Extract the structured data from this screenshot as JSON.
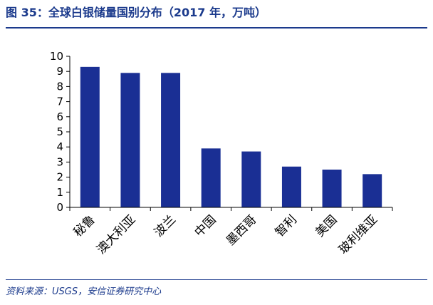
{
  "header": {
    "title": "图 35：全球白银储量国别分布（2017 年，万吨）"
  },
  "footer": {
    "source": "资料来源：USGS，安信证券研究中心"
  },
  "colors": {
    "bar": "#1a2f94",
    "title": "#1b3a8c",
    "axis": "#000000"
  },
  "chart_data": {
    "type": "bar",
    "title": "图 35：全球白银储量国别分布（2017 年，万吨）",
    "xlabel": "",
    "ylabel": "",
    "ylim": [
      0,
      10
    ],
    "yticks": [
      0,
      1,
      2,
      3,
      4,
      5,
      6,
      7,
      8,
      9,
      10
    ],
    "grid": false,
    "categories": [
      "秘鲁",
      "澳大利亚",
      "波兰",
      "中国",
      "墨西哥",
      "智利",
      "美国",
      "玻利维亚"
    ],
    "values": [
      9.3,
      8.9,
      8.9,
      3.9,
      3.7,
      2.7,
      2.5,
      2.2
    ]
  }
}
